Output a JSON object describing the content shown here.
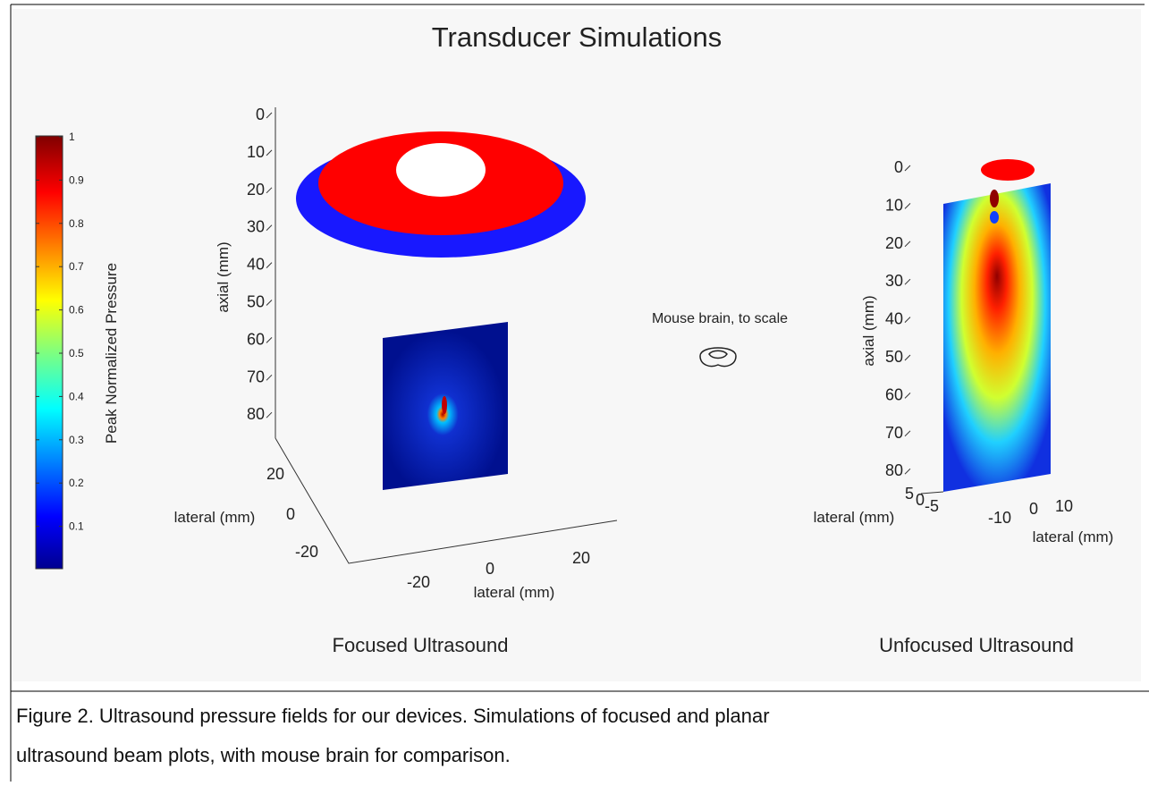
{
  "figure": {
    "title": "Transducer Simulations",
    "colorbar": {
      "label": "Peak Normalized Pressure",
      "ticks": [
        1,
        0.9,
        0.8,
        0.7,
        0.6,
        0.5,
        0.4,
        0.3,
        0.2,
        0.1
      ]
    },
    "annotation": "Mouse brain, to scale",
    "panels": [
      {
        "name": "Focused Ultrasound",
        "axial_label": "axial (mm)",
        "axial_ticks": [
          0,
          10,
          20,
          30,
          40,
          50,
          60,
          70,
          80
        ],
        "depth_label": "lateral (mm)",
        "depth_ticks": [
          20,
          0,
          -20
        ],
        "lateral_label": "lateral (mm)",
        "lateral_ticks": [
          -20,
          0,
          20
        ]
      },
      {
        "name": "Unfocused Ultrasound",
        "axial_label": "axial (mm)",
        "axial_ticks": [
          0,
          10,
          20,
          30,
          40,
          50,
          60,
          70,
          80
        ],
        "depth_label": "lateral (mm)",
        "depth_ticks": [
          5,
          0,
          -5
        ],
        "lateral_label": "lateral (mm)",
        "lateral_ticks": [
          -10,
          0,
          10
        ]
      }
    ]
  },
  "caption": {
    "lines": [
      "Figure 2. Ultrasound pressure fields for our devices.  Simulations of focused and planar",
      "ultrasound beam plots, with mouse brain for comparison."
    ]
  }
}
